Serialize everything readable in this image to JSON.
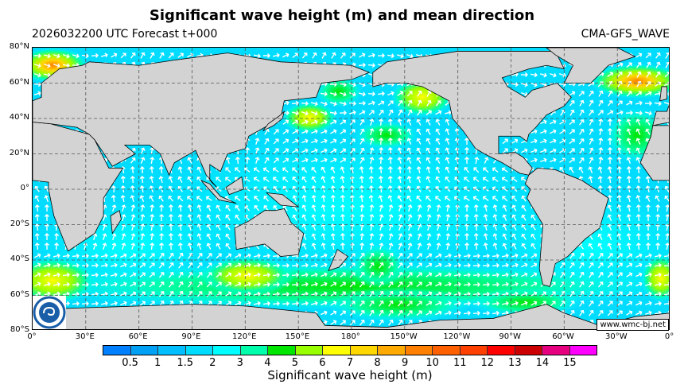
{
  "title": "Significant wave height (m) and mean direction",
  "subtitle_left": "2026032200 UTC Forecast t+000",
  "subtitle_right": "CMA-GFS_WAVE",
  "lat_labels": [
    "80°N",
    "60°N",
    "40°N",
    "20°N",
    "0°",
    "20°S",
    "40°S",
    "60°S",
    "80°S"
  ],
  "lon_labels": [
    "0°",
    "30°E",
    "60°E",
    "90°E",
    "120°E",
    "150°E",
    "180°",
    "150°W",
    "120°W",
    "90°W",
    "60°W",
    "30°W",
    "0°"
  ],
  "watermark_url": "www.wmc-bj.net",
  "logo": "CMA logo",
  "colorbar": {
    "label": "Significant wave height (m)",
    "ticks": [
      "0.5",
      "1",
      "1.5",
      "2",
      "3",
      "4",
      "5",
      "6",
      "7",
      "8",
      "9",
      "10",
      "11",
      "12",
      "13",
      "14",
      "15"
    ],
    "colors": [
      "#0080ff",
      "#00a0f5",
      "#00bfff",
      "#00dcff",
      "#00ffff",
      "#00ffaa",
      "#00e600",
      "#99ff00",
      "#ffff00",
      "#ffd700",
      "#ffaa00",
      "#ff8000",
      "#ff6000",
      "#ff4000",
      "#ff0000",
      "#cc0000",
      "#e6007f",
      "#ff00ff"
    ]
  },
  "colors": {
    "land": "#d3d3d3",
    "ocean": "#00dcff",
    "arrow": "#ffffff"
  }
}
